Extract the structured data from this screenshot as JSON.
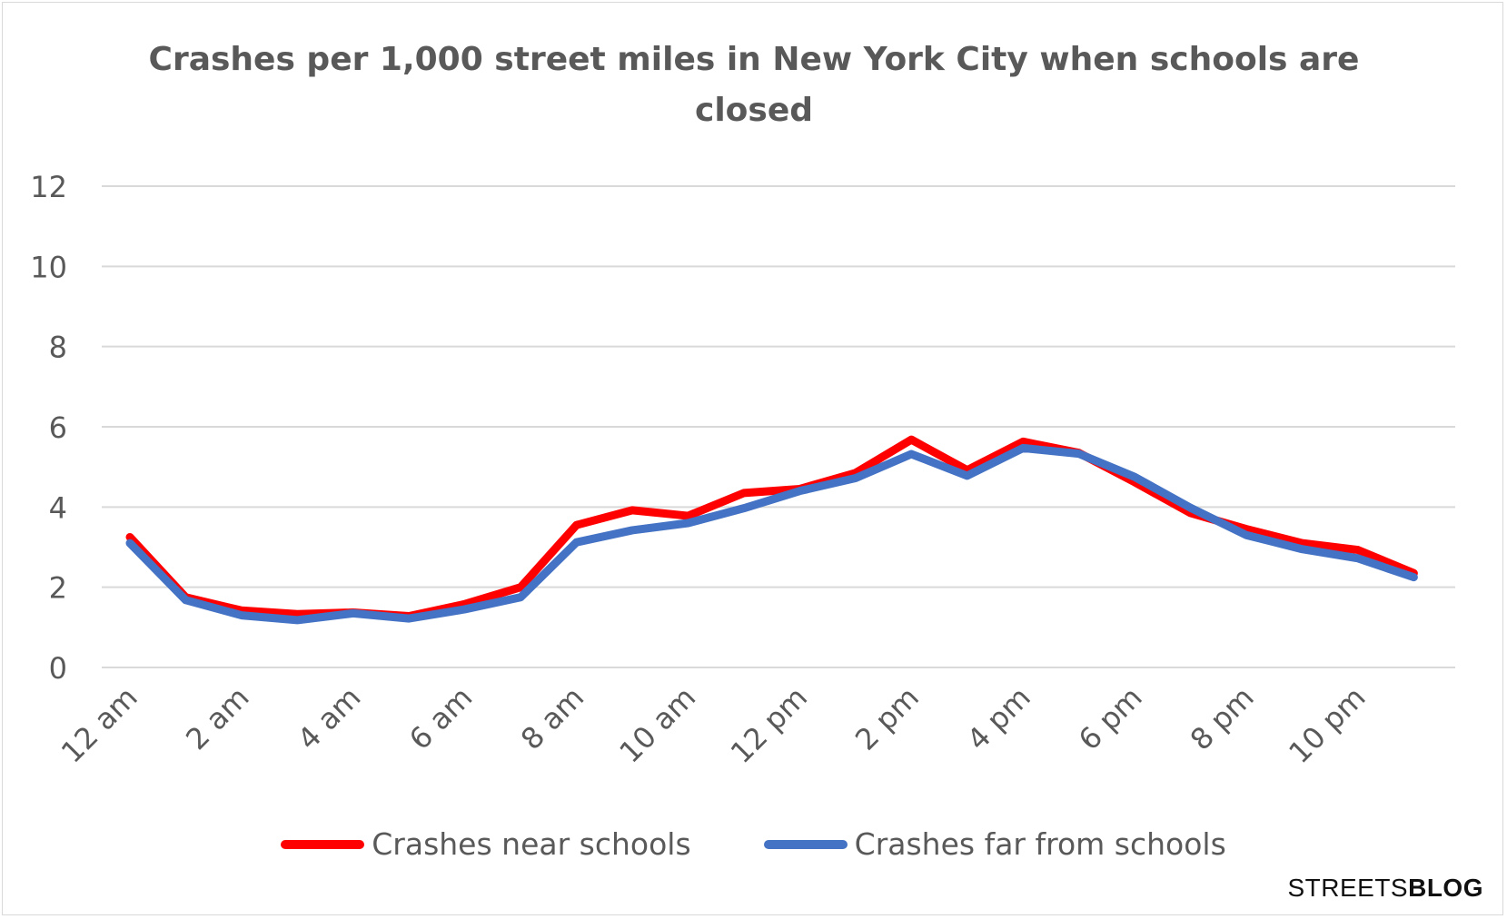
{
  "chart_data": {
    "type": "line",
    "title": "Crashes per 1,000 street miles in New York City when schools are closed",
    "xlabel": "",
    "ylabel": "",
    "ylim": [
      0,
      12
    ],
    "yticks": [
      0,
      2,
      4,
      6,
      8,
      10,
      12
    ],
    "grid": true,
    "legend_position": "bottom",
    "categories": [
      "12 am",
      "1 am",
      "2 am",
      "3 am",
      "4 am",
      "5 am",
      "6 am",
      "7 am",
      "8 am",
      "9 am",
      "10 am",
      "11 am",
      "12 pm",
      "1 pm",
      "2 pm",
      "3 pm",
      "4 pm",
      "5 pm",
      "6 pm",
      "7 pm",
      "8 pm",
      "9 pm",
      "10 pm",
      "11 pm"
    ],
    "tick_labels": [
      "12 am",
      "2 am",
      "4 am",
      "6 am",
      "8 am",
      "10 am",
      "12 pm",
      "2 pm",
      "4 pm",
      "6 pm",
      "8 pm",
      "10 pm"
    ],
    "series": [
      {
        "name": "Crashes near schools",
        "color": "#ff0000",
        "values": [
          3.25,
          1.75,
          1.42,
          1.33,
          1.37,
          1.28,
          1.58,
          2.0,
          3.55,
          3.92,
          3.78,
          4.35,
          4.45,
          4.85,
          5.68,
          4.92,
          5.63,
          5.35,
          4.62,
          3.85,
          3.45,
          3.1,
          2.93,
          2.35
        ]
      },
      {
        "name": "Crashes far from schools",
        "color": "#4472c4",
        "values": [
          3.1,
          1.68,
          1.3,
          1.18,
          1.35,
          1.22,
          1.45,
          1.75,
          3.12,
          3.42,
          3.6,
          3.97,
          4.4,
          4.72,
          5.32,
          4.78,
          5.47,
          5.33,
          4.75,
          3.98,
          3.3,
          2.95,
          2.72,
          2.25
        ]
      }
    ]
  },
  "brand": {
    "prefix": "STREETS",
    "suffix": "BLOG"
  }
}
